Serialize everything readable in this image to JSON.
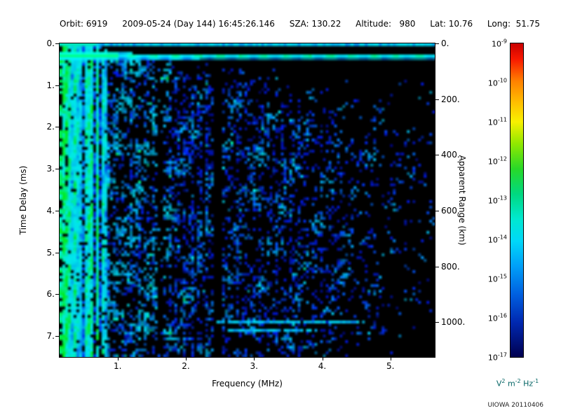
{
  "header": {
    "orbit": "Orbit: 6919",
    "datetime": "2009-05-24 (Day 144) 16:45:26.146",
    "sza": "SZA: 130.22",
    "altitude": "Altitude:   980",
    "lat": "Lat: 10.76",
    "long": "Long:  51.75"
  },
  "footer": {
    "watermark": "UIOWA 20110406"
  },
  "chart_data": {
    "type": "heatmap",
    "description": "Radar sounder ionogram: echo spectral density versus frequency and time delay; dense blue/cyan speckle at low frequencies, bright green surface echo line near 0.3 ms, vertical green striping below 0.85 MHz, black vertical gap near 2.46 MHz, faint horizontal streaks near 6.6-6.8 ms",
    "xlabel": "Frequency (MHz)",
    "ylabel_left": "Time Delay (ms)",
    "ylabel_right": "Apparent Range (km)",
    "x_range_mhz": [
      0.15,
      5.65
    ],
    "y_range_ms": [
      0,
      7.5
    ],
    "x_ticks": {
      "values": [
        1,
        2,
        3,
        4,
        5
      ],
      "labels": [
        "1.",
        "2.",
        "3.",
        "4.",
        "5."
      ]
    },
    "y_ticks_left": {
      "values": [
        0,
        1,
        2,
        3,
        4,
        5,
        6,
        7
      ],
      "labels": [
        "0.",
        "1.",
        "2.",
        "3.",
        "4.",
        "5.",
        "6.",
        "7."
      ]
    },
    "y_ticks_right": {
      "values_km": [
        0,
        200,
        400,
        600,
        800,
        1000
      ],
      "labels": [
        "0.",
        "200.",
        "400.",
        "600.",
        "800.",
        "1000."
      ],
      "km_per_ms": 150
    },
    "colorbar": {
      "scale": "log",
      "top_value": "1e-9",
      "bottom_value": "1e-17",
      "tick_exponents": [
        "-9",
        "-10",
        "-11",
        "-12",
        "-13",
        "-14",
        "-15",
        "-16",
        "-17"
      ],
      "unit_parts": [
        [
          "V",
          "2"
        ],
        [
          "m",
          "-2"
        ],
        [
          "Hz",
          "-1"
        ]
      ],
      "unit_color": "#066666",
      "gradient_top_to_bottom": [
        "#c80000 0%",
        "#f81800 5%",
        "#ff8000 12%",
        "#ffc000 19%",
        "#f8f000 25%",
        "#90e800 32%",
        "#28d828 40%",
        "#00d880 48%",
        "#00e8d0 56%",
        "#00d8f8 63%",
        "#00a0f8 71%",
        "#0060e0 80%",
        "#0028b0 89%",
        "#000050 100%"
      ]
    },
    "features": {
      "noise_seed": 987654321,
      "surface_echo_delay_ms": 0.3,
      "stripes_max_freq_mhz": 0.85,
      "dark_band_freq_mhz": 2.46,
      "dark_band_width_mhz": 0.14,
      "minor_dark_band_freq_mhz": 1.62,
      "bottom_streaks": [
        {
          "delay_ms": 6.62,
          "f_start_mhz": 2.45,
          "f_end_mhz": 4.55
        },
        {
          "delay_ms": 6.85,
          "f_start_mhz": 2.6,
          "f_end_mhz": 3.9
        }
      ]
    }
  }
}
